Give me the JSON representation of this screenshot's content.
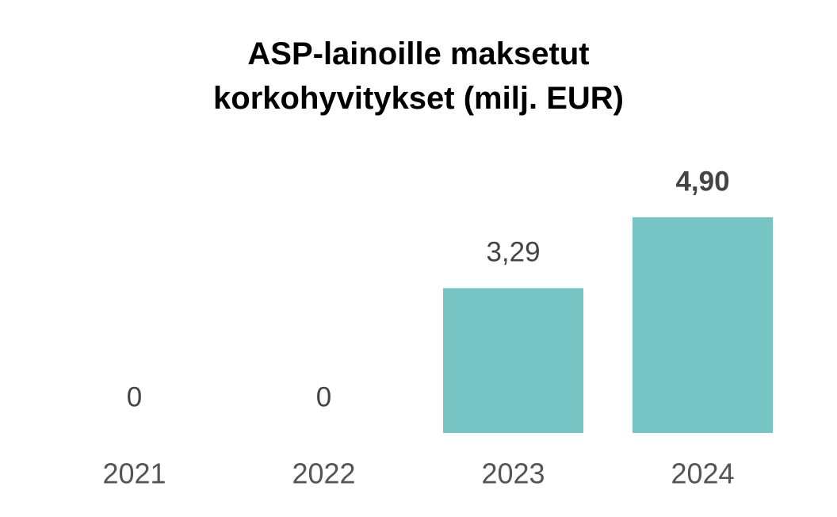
{
  "chart_data": {
    "type": "bar",
    "title": "ASP-lainoille maksetut korkohyvitykset (milj. EUR)",
    "categories": [
      "2021",
      "2022",
      "2023",
      "2024"
    ],
    "values": [
      0,
      0,
      3.29,
      4.9
    ],
    "value_labels": [
      "0",
      "0",
      "3,29",
      "4,90"
    ],
    "color": "#76c4c4"
  }
}
